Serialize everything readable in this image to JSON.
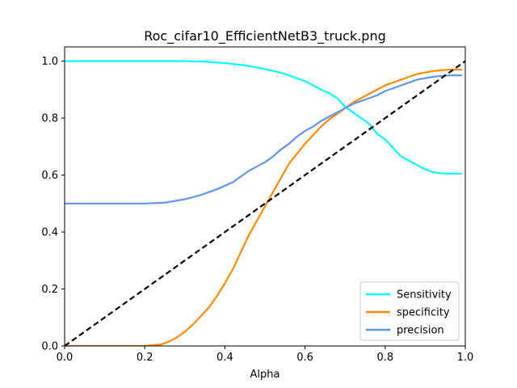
{
  "chart_data": {
    "type": "line",
    "title": "Roc_cifar10_EfficientNetB3_truck.png",
    "xlabel": "Alpha",
    "ylabel": "",
    "xlim": [
      0,
      1
    ],
    "ylim": [
      0,
      1.05
    ],
    "grid": false,
    "legend_position": "lower-right",
    "x_ticks": [
      "0.0",
      "0.2",
      "0.4",
      "0.6",
      "0.8",
      "1.0"
    ],
    "y_ticks": [
      "0.0",
      "0.2",
      "0.4",
      "0.6",
      "0.8",
      "1.0"
    ],
    "series": [
      {
        "name": "Sensitivity",
        "color": "#00ffff",
        "x": [
          0.0,
          0.1,
          0.2,
          0.3,
          0.35,
          0.4,
          0.42,
          0.45,
          0.48,
          0.5,
          0.52,
          0.55,
          0.58,
          0.6,
          0.62,
          0.64,
          0.66,
          0.68,
          0.7,
          0.72,
          0.74,
          0.76,
          0.78,
          0.8,
          0.82,
          0.84,
          0.86,
          0.88,
          0.9,
          0.92,
          0.94,
          0.96,
          0.98,
          0.99
        ],
        "values": [
          1.0,
          1.0,
          1.0,
          1.0,
          0.998,
          0.993,
          0.99,
          0.985,
          0.978,
          0.972,
          0.966,
          0.955,
          0.94,
          0.93,
          0.915,
          0.9,
          0.888,
          0.87,
          0.84,
          0.82,
          0.8,
          0.78,
          0.745,
          0.725,
          0.695,
          0.665,
          0.65,
          0.635,
          0.62,
          0.61,
          0.606,
          0.605,
          0.605,
          0.604
        ]
      },
      {
        "name": "specificity",
        "color": "#ff8c00",
        "x": [
          0.0,
          0.1,
          0.2,
          0.24,
          0.26,
          0.28,
          0.3,
          0.32,
          0.34,
          0.36,
          0.38,
          0.4,
          0.42,
          0.44,
          0.46,
          0.48,
          0.5,
          0.52,
          0.54,
          0.56,
          0.58,
          0.6,
          0.62,
          0.64,
          0.66,
          0.68,
          0.7,
          0.72,
          0.74,
          0.76,
          0.78,
          0.8,
          0.82,
          0.84,
          0.86,
          0.88,
          0.9,
          0.92,
          0.94,
          0.96,
          0.98,
          0.99
        ],
        "values": [
          0.0,
          0.0,
          0.0,
          0.005,
          0.015,
          0.03,
          0.05,
          0.075,
          0.105,
          0.135,
          0.175,
          0.22,
          0.27,
          0.33,
          0.39,
          0.44,
          0.49,
          0.54,
          0.59,
          0.64,
          0.675,
          0.71,
          0.74,
          0.77,
          0.795,
          0.815,
          0.835,
          0.855,
          0.87,
          0.885,
          0.9,
          0.915,
          0.925,
          0.935,
          0.945,
          0.955,
          0.96,
          0.965,
          0.968,
          0.97,
          0.97,
          0.97
        ]
      },
      {
        "name": "precision",
        "color": "#6495ed",
        "x": [
          0.0,
          0.1,
          0.2,
          0.25,
          0.3,
          0.34,
          0.38,
          0.42,
          0.46,
          0.5,
          0.52,
          0.54,
          0.56,
          0.58,
          0.6,
          0.62,
          0.64,
          0.66,
          0.68,
          0.7,
          0.72,
          0.74,
          0.76,
          0.78,
          0.8,
          0.82,
          0.84,
          0.86,
          0.88,
          0.9,
          0.92,
          0.94,
          0.96,
          0.98,
          0.99
        ],
        "values": [
          0.5,
          0.5,
          0.5,
          0.503,
          0.515,
          0.53,
          0.55,
          0.575,
          0.615,
          0.645,
          0.665,
          0.69,
          0.71,
          0.735,
          0.755,
          0.77,
          0.79,
          0.805,
          0.82,
          0.835,
          0.85,
          0.86,
          0.87,
          0.88,
          0.895,
          0.905,
          0.915,
          0.925,
          0.935,
          0.94,
          0.945,
          0.948,
          0.95,
          0.95,
          0.95
        ]
      }
    ],
    "reference_line": {
      "x": [
        0,
        1
      ],
      "y": [
        0,
        1
      ],
      "color": "#000000",
      "style": "dashed"
    }
  }
}
